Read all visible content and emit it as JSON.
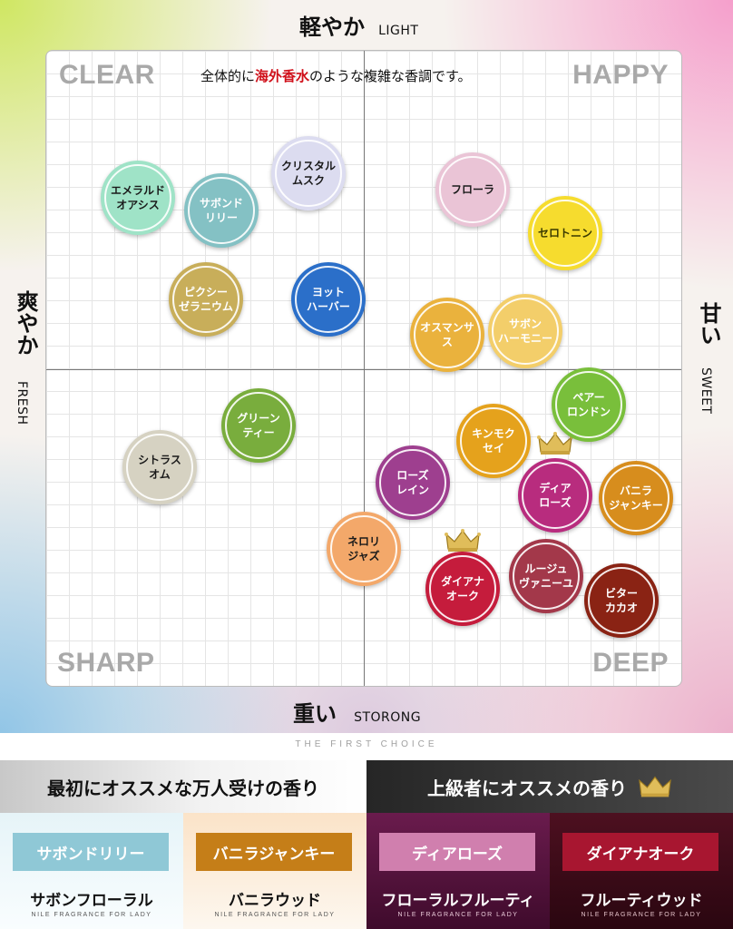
{
  "axes": {
    "top_jp": "軽やか",
    "top_en": "LIGHT",
    "bottom_jp": "重い",
    "bottom_en": "STORONG",
    "left_jp": "爽やか",
    "left_en": "FRESH",
    "right_jp": "甘い",
    "right_en": "SWEET"
  },
  "quadrants": {
    "top_left": "CLEAR",
    "top_right": "HAPPY",
    "bottom_left": "SHARP",
    "bottom_right": "DEEP"
  },
  "note": {
    "before": "全体的に",
    "highlight": "海外香水",
    "after": "のような複雑な香調です。"
  },
  "fragrances": [
    {
      "label": "エメラルド\nオアシス",
      "color": "#9fe3c7",
      "text": "#1a1a1a"
    },
    {
      "label": "サボンド\nリリー",
      "color": "#84c1c4",
      "text": "#ffffff"
    },
    {
      "label": "クリスタル\nムスク",
      "color": "#dcdcf0",
      "text": "#1a1a1a"
    },
    {
      "label": "フローラ",
      "color": "#eac4d6",
      "text": "#1a1a1a"
    },
    {
      "label": "セロトニン",
      "color": "#f6dc2e",
      "text": "#3a3a00"
    },
    {
      "label": "ピクシー\nゼラニウム",
      "color": "#c8ae5a",
      "text": "#ffffff"
    },
    {
      "label": "ヨット\nハーバー",
      "color": "#2b6fc9",
      "text": "#ffffff"
    },
    {
      "label": "オスマンサス",
      "color": "#eab23d",
      "text": "#ffffff"
    },
    {
      "label": "サボン\nハーモニー",
      "color": "#f3ce6a",
      "text": "#ffffff"
    },
    {
      "label": "グリーン\nティー",
      "color": "#79ad3d",
      "text": "#ffffff"
    },
    {
      "label": "ペアー\nロンドン",
      "color": "#79bf3b",
      "text": "#ffffff"
    },
    {
      "label": "シトラス\nオム",
      "color": "#d6d2c2",
      "text": "#1a1a1a"
    },
    {
      "label": "キンモク\nセイ",
      "color": "#e5a21c",
      "text": "#ffffff"
    },
    {
      "label": "ローズ\nレイン",
      "color": "#9e3f8f",
      "text": "#ffffff"
    },
    {
      "label": "ディア\nローズ",
      "color": "#b82c7e",
      "text": "#ffffff"
    },
    {
      "label": "バニラ\nジャンキー",
      "color": "#d78d1d",
      "text": "#ffffff"
    },
    {
      "label": "ネロリ\nジャズ",
      "color": "#f3a86a",
      "text": "#1a1a1a"
    },
    {
      "label": "ダイアナ\nオーク",
      "color": "#c51c3c",
      "text": "#ffffff"
    },
    {
      "label": "ルージュ\nヴァニーユ",
      "color": "#a3384a",
      "text": "#ffffff"
    },
    {
      "label": "ビター\nカカオ",
      "color": "#8a2314",
      "text": "#ffffff"
    }
  ],
  "footer": {
    "tagline": "THE FIRST CHOICE",
    "left_heading": "最初にオススメな万人受けの香り",
    "right_heading": "上級者にオススメの香り",
    "cards": [
      {
        "name": "サボンドリリー",
        "type": "サボンフローラル",
        "caption": "NILE FRAGRANCE FOR LADY",
        "tag_color": "#8fc8d6",
        "bg": "linear-gradient(to bottom, #e6f4f8, #f9fdfe)",
        "sub_color": "#111111",
        "tiny_color": "#555555"
      },
      {
        "name": "バニラジャンキー",
        "type": "バニラウッド",
        "caption": "NILE FRAGRANCE FOR LADY",
        "tag_color": "#c57e18",
        "bg": "linear-gradient(to bottom, #fbe3c8, #fdf7ef)",
        "sub_color": "#111111",
        "tiny_color": "#555555"
      },
      {
        "name": "ディアローズ",
        "type": "フローラルフルーティ",
        "caption": "NILE FRAGRANCE FOR LADY",
        "tag_color": "#d07fae",
        "bg": "linear-gradient(to bottom, #6a1b4d, #3f0b2c)",
        "sub_color": "#ffffff",
        "tiny_color": "#e9c9d8"
      },
      {
        "name": "ダイアナオーク",
        "type": "フルーティウッド",
        "caption": "NILE FRAGRANCE FOR LADY",
        "tag_color": "#a81630",
        "bg": "linear-gradient(to bottom, #4d1020, #2a0610)",
        "sub_color": "#ffffff",
        "tiny_color": "#e3c1c8"
      }
    ]
  }
}
